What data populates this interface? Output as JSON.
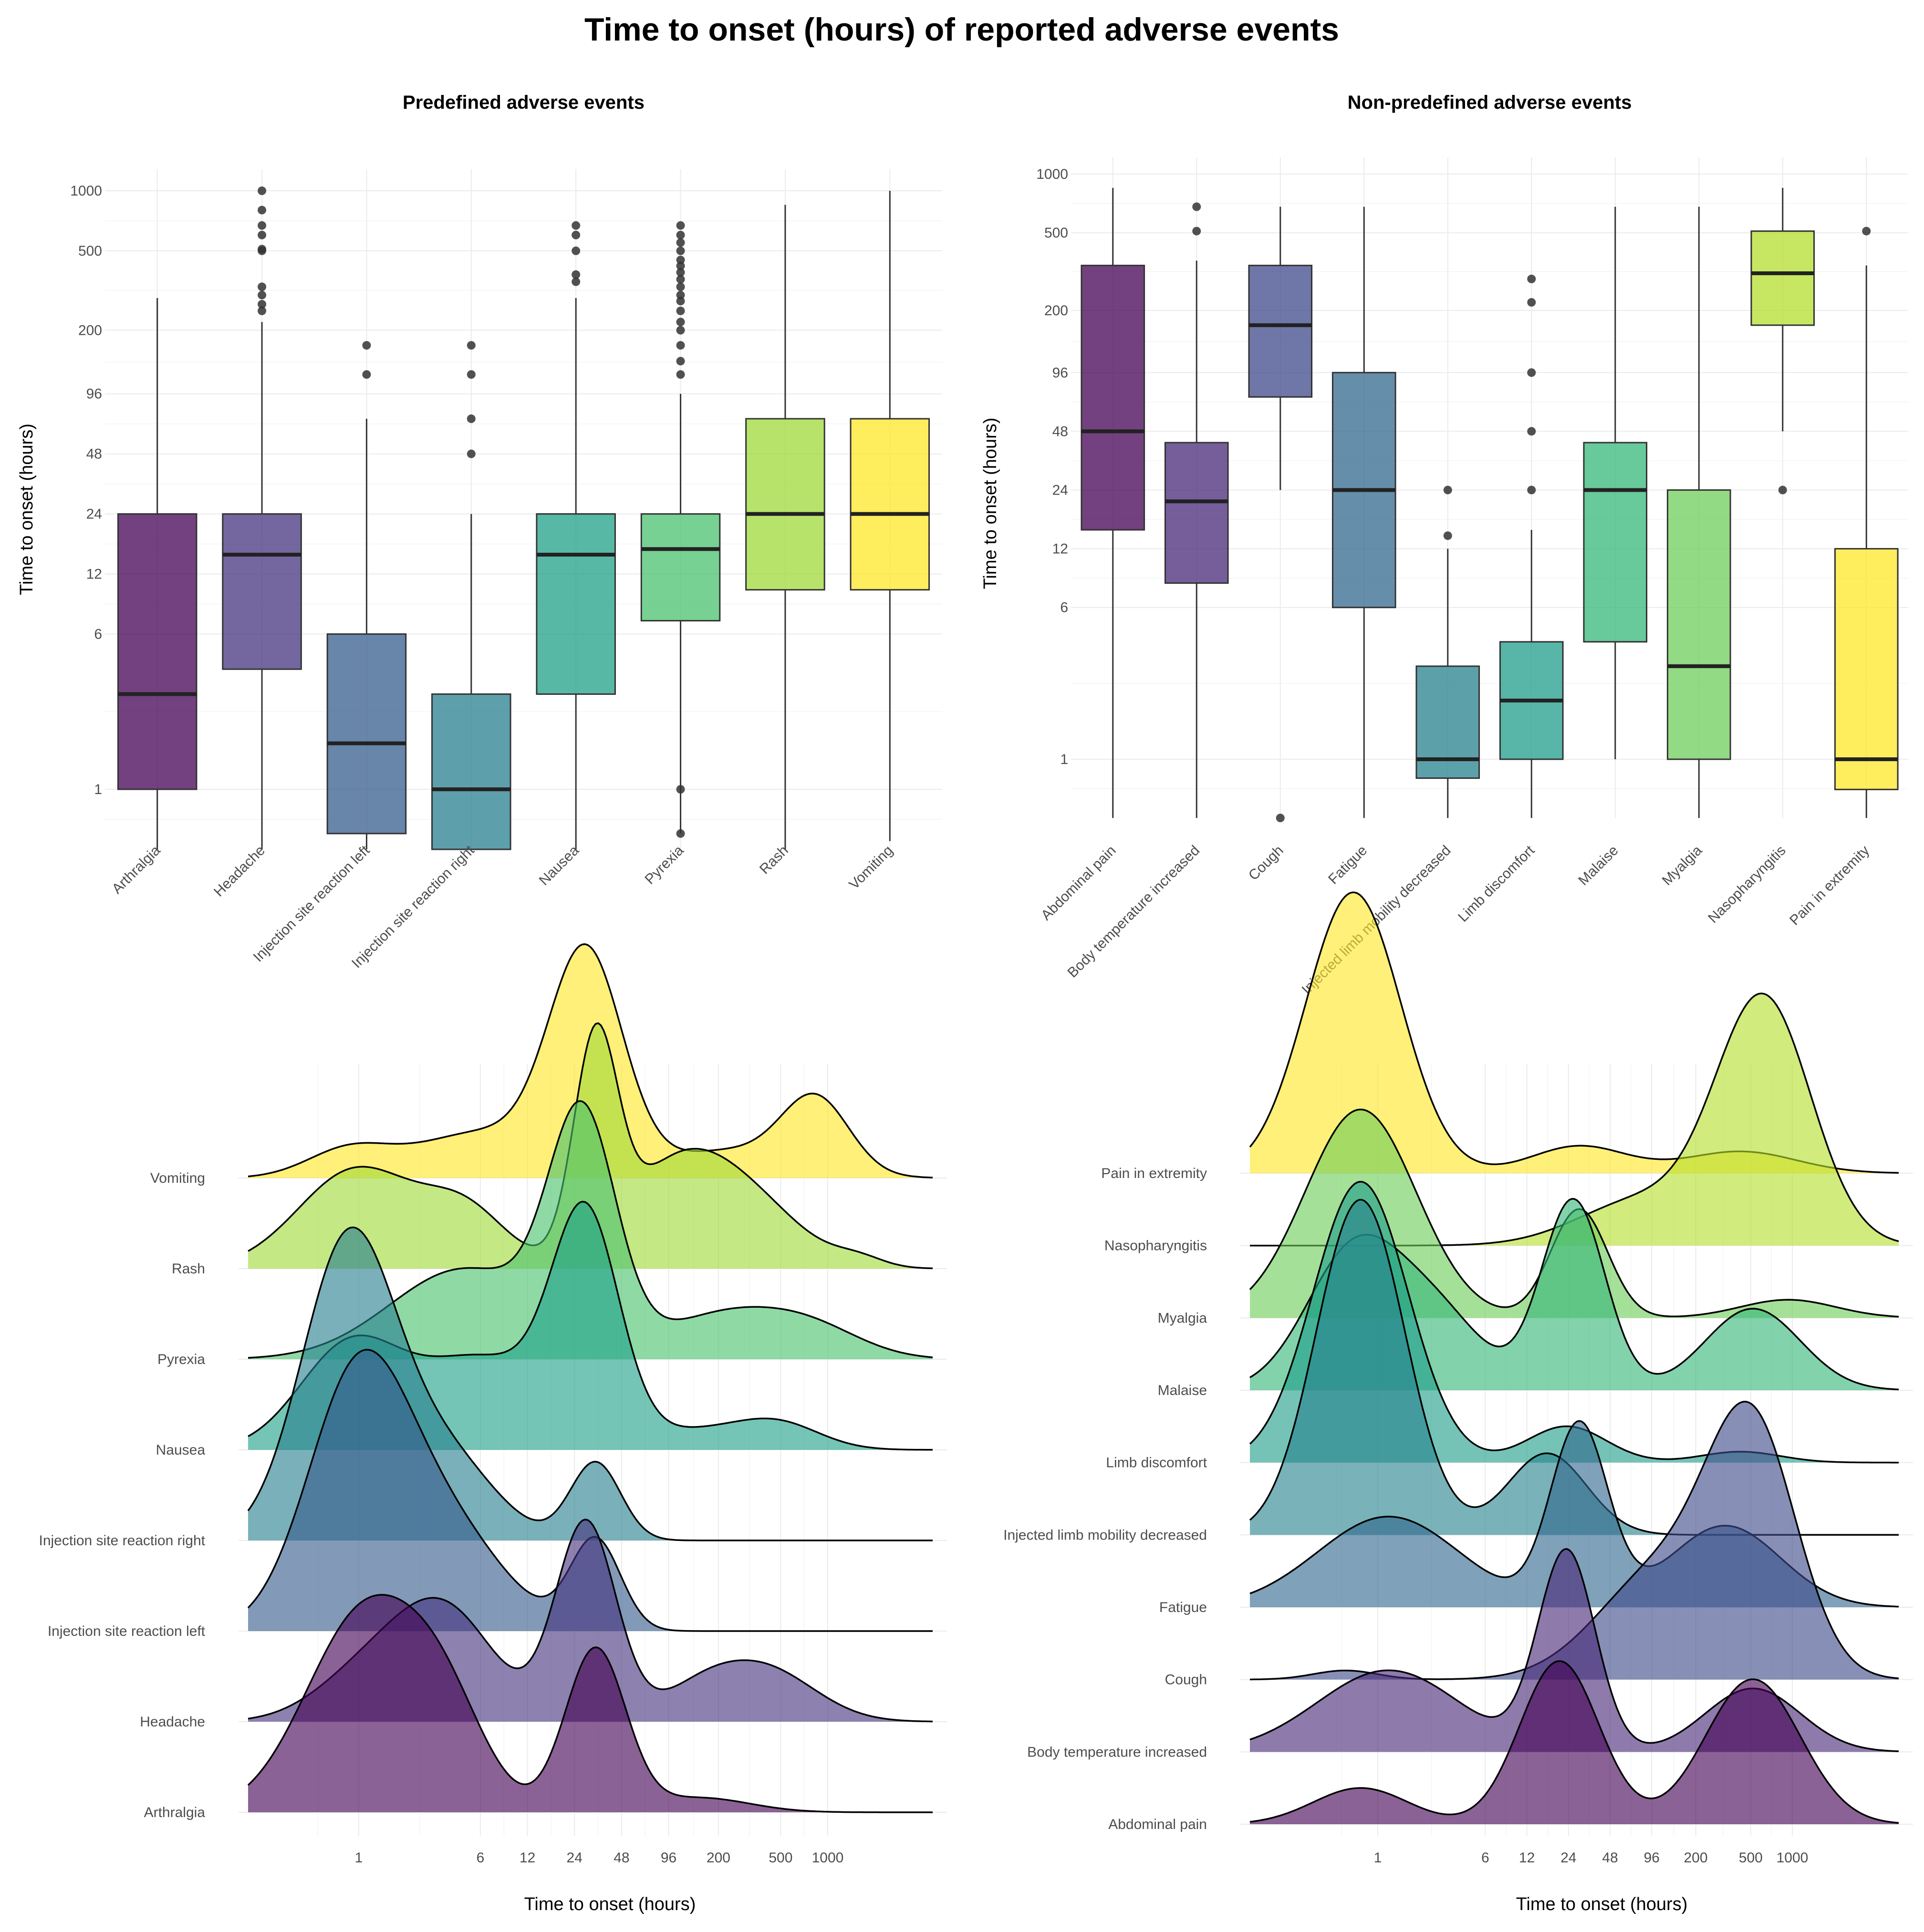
{
  "title": "Time to onset (hours) of reported adverse events",
  "chart_data": [
    {
      "type": "box",
      "title": "Predefined adverse events",
      "ylabel": "Time to onset (hours)",
      "xlabel": "",
      "y_scale": "log",
      "y_ticks": [
        1,
        6,
        12,
        24,
        48,
        96,
        200,
        500,
        1000
      ],
      "ylim": [
        0.5,
        1300
      ],
      "categories": [
        "Arthralgia",
        "Headache",
        "Injection site reaction left",
        "Injection site reaction right",
        "Nausea",
        "Pyrexia",
        "Rash",
        "Vomiting"
      ],
      "colors": [
        "#440154",
        "#46337E",
        "#365C8D",
        "#277F8E",
        "#1FA187",
        "#4AC16D",
        "#A0DA39",
        "#FDE725"
      ],
      "boxes": [
        {
          "min": 0.5,
          "q1": 1,
          "median": 3,
          "q3": 24,
          "max": 290,
          "outliers": []
        },
        {
          "min": 0.5,
          "q1": 4,
          "median": 15,
          "q3": 24,
          "max": 220,
          "outliers": [
            250,
            270,
            300,
            330,
            500,
            510,
            600,
            670,
            800,
            1000
          ]
        },
        {
          "min": 0.5,
          "q1": 0.6,
          "median": 1.7,
          "q3": 6,
          "max": 72,
          "outliers": [
            120,
            168
          ]
        },
        {
          "min": 0.5,
          "q1": 0.5,
          "median": 1,
          "q3": 3,
          "max": 24,
          "outliers": [
            48,
            72,
            120,
            168
          ]
        },
        {
          "min": 0.5,
          "q1": 3,
          "median": 15,
          "q3": 24,
          "max": 290,
          "outliers": [
            350,
            380,
            500,
            600,
            670
          ]
        },
        {
          "min": 0.6,
          "q1": 7,
          "median": 16,
          "q3": 24,
          "max": 96,
          "outliers": [
            0.6,
            1,
            120,
            140,
            168,
            200,
            220,
            250,
            280,
            300,
            330,
            360,
            390,
            420,
            450,
            500,
            550,
            600,
            670
          ]
        },
        {
          "min": 0.5,
          "q1": 10,
          "median": 24,
          "q3": 72,
          "max": 850,
          "outliers": []
        },
        {
          "min": 0.55,
          "q1": 10,
          "median": 24,
          "q3": 72,
          "max": 1000,
          "outliers": []
        }
      ]
    },
    {
      "type": "box",
      "title": "Non-predefined adverse events",
      "ylabel": "Time to onset (hours)",
      "xlabel": "",
      "y_scale": "log",
      "y_ticks": [
        1,
        6,
        12,
        24,
        48,
        96,
        200,
        500,
        1000
      ],
      "ylim": [
        0.5,
        1300
      ],
      "categories": [
        "Abdominal pain",
        "Body temperature increased",
        "Cough",
        "Fatigue",
        "Injected limb mobility decreased",
        "Limb discomfort",
        "Malaise",
        "Myalgia",
        "Nasopharyngitis",
        "Pain in extremity"
      ],
      "colors": [
        "#440154",
        "#482878",
        "#3E4A89",
        "#31688E",
        "#26828E",
        "#1F9E89",
        "#35B779",
        "#6DCD59",
        "#B4DE2C",
        "#FDE725"
      ],
      "boxes": [
        {
          "min": 0.5,
          "q1": 15,
          "median": 48,
          "q3": 340,
          "max": 850,
          "outliers": []
        },
        {
          "min": 0.5,
          "q1": 8,
          "median": 21,
          "q3": 42,
          "max": 360,
          "outliers": [
            510,
            680
          ]
        },
        {
          "min": 24,
          "q1": 72,
          "median": 168,
          "q3": 340,
          "max": 680,
          "outliers": [
            0.5
          ]
        },
        {
          "min": 0.5,
          "q1": 6,
          "median": 24,
          "q3": 96,
          "max": 680,
          "outliers": []
        },
        {
          "min": 0.5,
          "q1": 0.8,
          "median": 1,
          "q3": 3,
          "max": 12,
          "outliers": [
            14,
            24
          ]
        },
        {
          "min": 0.5,
          "q1": 1,
          "median": 2,
          "q3": 4,
          "max": 15,
          "outliers": [
            24,
            48,
            96,
            220,
            290
          ]
        },
        {
          "min": 1,
          "q1": 4,
          "median": 24,
          "q3": 42,
          "max": 680,
          "outliers": []
        },
        {
          "min": 0.5,
          "q1": 1,
          "median": 3,
          "q3": 24,
          "max": 680,
          "outliers": []
        },
        {
          "min": 48,
          "q1": 168,
          "median": 310,
          "q3": 510,
          "max": 850,
          "outliers": [
            24
          ]
        },
        {
          "min": 0.5,
          "q1": 0.7,
          "median": 1,
          "q3": 12,
          "max": 340,
          "outliers": [
            510
          ]
        }
      ]
    },
    {
      "type": "ridgeline",
      "title": "",
      "xlabel": "Time to onset (hours)",
      "ylabel": "",
      "x_scale": "log",
      "x_ticks": [
        1,
        6,
        12,
        24,
        48,
        96,
        200,
        500,
        1000
      ],
      "xlim": [
        0.2,
        2500
      ],
      "categories": [
        "Arthralgia",
        "Headache",
        "Injection site reaction left",
        "Injection site reaction right",
        "Nausea",
        "Pyrexia",
        "Rash",
        "Vomiting"
      ],
      "colors": [
        "#440154",
        "#46337E",
        "#365C8D",
        "#277F8E",
        "#1FA187",
        "#4AC16D",
        "#A0DA39",
        "#FDE725"
      ],
      "series": [
        {
          "name": "Arthralgia",
          "range": [
            0.2,
            2500
          ],
          "peaks": [
            [
              1,
              1.1,
              0.35
            ],
            [
              3,
              0.45,
              0.25
            ],
            [
              24,
              0.9,
              0.18
            ],
            [
              100,
              0.08,
              0.3
            ]
          ]
        },
        {
          "name": "Headache",
          "range": [
            0.2,
            2500
          ],
          "peaks": [
            [
              1,
              0.25,
              0.3
            ],
            [
              3,
              0.6,
              0.3
            ],
            [
              21,
              1.1,
              0.18
            ],
            [
              100,
              0.15,
              0.25
            ],
            [
              250,
              0.28,
              0.3
            ]
          ]
        },
        {
          "name": "Injection site reaction left",
          "range": [
            0.2,
            2500
          ],
          "peaks": [
            [
              0.9,
              1.35,
              0.3
            ],
            [
              3,
              0.55,
              0.35
            ],
            [
              24,
              0.5,
              0.15
            ]
          ]
        },
        {
          "name": "Injection site reaction right",
          "range": [
            0.2,
            2500
          ],
          "peaks": [
            [
              0.8,
              1.65,
              0.28
            ],
            [
              3,
              0.45,
              0.3
            ],
            [
              24,
              0.43,
              0.15
            ]
          ]
        },
        {
          "name": "Nausea",
          "range": [
            0.2,
            2500
          ],
          "peaks": [
            [
              0.8,
              0.55,
              0.3
            ],
            [
              5,
              0.5,
              0.4
            ],
            [
              21,
              1.2,
              0.2
            ],
            [
              96,
              0.1,
              0.35
            ],
            [
              300,
              0.13,
              0.25
            ]
          ]
        },
        {
          "name": "Pyrexia",
          "range": [
            0.2,
            2500
          ],
          "peaks": [
            [
              4,
              0.5,
              0.45
            ],
            [
              20,
              1.25,
              0.2
            ],
            [
              150,
              0.25,
              0.4
            ],
            [
              500,
              0.12,
              0.3
            ]
          ]
        },
        {
          "name": "Rash",
          "range": [
            0.2,
            2500
          ],
          "peaks": [
            [
              0.9,
              0.55,
              0.35
            ],
            [
              4,
              0.3,
              0.25
            ],
            [
              24,
              1.15,
              0.13
            ],
            [
              80,
              0.6,
              0.35
            ],
            [
              250,
              0.2,
              0.3
            ],
            [
              900,
              0.05,
              0.15
            ]
          ]
        },
        {
          "name": "Vomiting",
          "range": [
            0.2,
            2500
          ],
          "peaks": [
            [
              0.8,
              0.15,
              0.25
            ],
            [
              5,
              0.25,
              0.4
            ],
            [
              21,
              1.2,
              0.22
            ],
            [
              150,
              0.15,
              0.4
            ],
            [
              500,
              0.4,
              0.2
            ]
          ]
        }
      ]
    },
    {
      "type": "ridgeline",
      "title": "",
      "xlabel": "Time to onset (hours)",
      "ylabel": "",
      "x_scale": "log",
      "x_ticks": [
        1,
        6,
        12,
        24,
        48,
        96,
        200,
        500,
        1000
      ],
      "xlim": [
        0.2,
        2500
      ],
      "categories": [
        "Abdominal pain",
        "Body temperature increased",
        "Cough",
        "Fatigue",
        "Injected limb mobility decreased",
        "Limb discomfort",
        "Malaise",
        "Myalgia",
        "Nasopharyngitis",
        "Pain in extremity"
      ],
      "colors": [
        "#440154",
        "#482878",
        "#3E4A89",
        "#31688E",
        "#26828E",
        "#1F9E89",
        "#35B779",
        "#6DCD59",
        "#B4DE2C",
        "#FDE725"
      ],
      "series": [
        {
          "name": "Abdominal pain",
          "range": [
            0.2,
            2500
          ],
          "peaks": [
            [
              1,
              0.2,
              0.3
            ],
            [
              18,
              0.9,
              0.25
            ],
            [
              300,
              0.8,
              0.3
            ]
          ]
        },
        {
          "name": "Body temperature increased",
          "range": [
            0.2,
            2500
          ],
          "peaks": [
            [
              1.5,
              0.45,
              0.45
            ],
            [
              20,
              1.1,
              0.18
            ],
            [
              300,
              0.35,
              0.3
            ]
          ]
        },
        {
          "name": "Cough",
          "range": [
            0.2,
            2500
          ],
          "peaks": [
            [
              0.8,
              0.05,
              0.2
            ],
            [
              80,
              0.6,
              0.4
            ],
            [
              300,
              1.3,
              0.28
            ]
          ]
        },
        {
          "name": "Fatigue",
          "range": [
            0.2,
            2500
          ],
          "peaks": [
            [
              1.5,
              0.5,
              0.45
            ],
            [
              24,
              1.0,
              0.18
            ],
            [
              200,
              0.45,
              0.35
            ]
          ]
        },
        {
          "name": "Injected limb mobility decreased",
          "range": [
            0.2,
            2500
          ],
          "peaks": [
            [
              1,
              1.85,
              0.28
            ],
            [
              15,
              0.45,
              0.25
            ]
          ]
        },
        {
          "name": "Limb discomfort",
          "range": [
            0.2,
            2500
          ],
          "peaks": [
            [
              1,
              1.55,
              0.3
            ],
            [
              20,
              0.2,
              0.25
            ],
            [
              250,
              0.06,
              0.25
            ]
          ]
        },
        {
          "name": "Malaise",
          "range": [
            0.2,
            2500
          ],
          "peaks": [
            [
              0.9,
              0.75,
              0.3
            ],
            [
              3,
              0.4,
              0.3
            ],
            [
              22,
              1.05,
              0.2
            ],
            [
              300,
              0.45,
              0.3
            ]
          ]
        },
        {
          "name": "Myalgia",
          "range": [
            0.2,
            2500
          ],
          "peaks": [
            [
              1,
              1.15,
              0.35
            ],
            [
              24,
              0.6,
              0.18
            ],
            [
              500,
              0.1,
              0.3
            ]
          ]
        },
        {
          "name": "Nasopharyngitis",
          "range": [
            0.2,
            2500
          ],
          "peaks": [
            [
              60,
              0.25,
              0.4
            ],
            [
              350,
              1.35,
              0.3
            ]
          ]
        },
        {
          "name": "Pain in extremity",
          "range": [
            0.2,
            2500
          ],
          "peaks": [
            [
              0.9,
              1.55,
              0.3
            ],
            [
              24,
              0.15,
              0.3
            ],
            [
              250,
              0.12,
              0.35
            ]
          ]
        }
      ]
    }
  ]
}
